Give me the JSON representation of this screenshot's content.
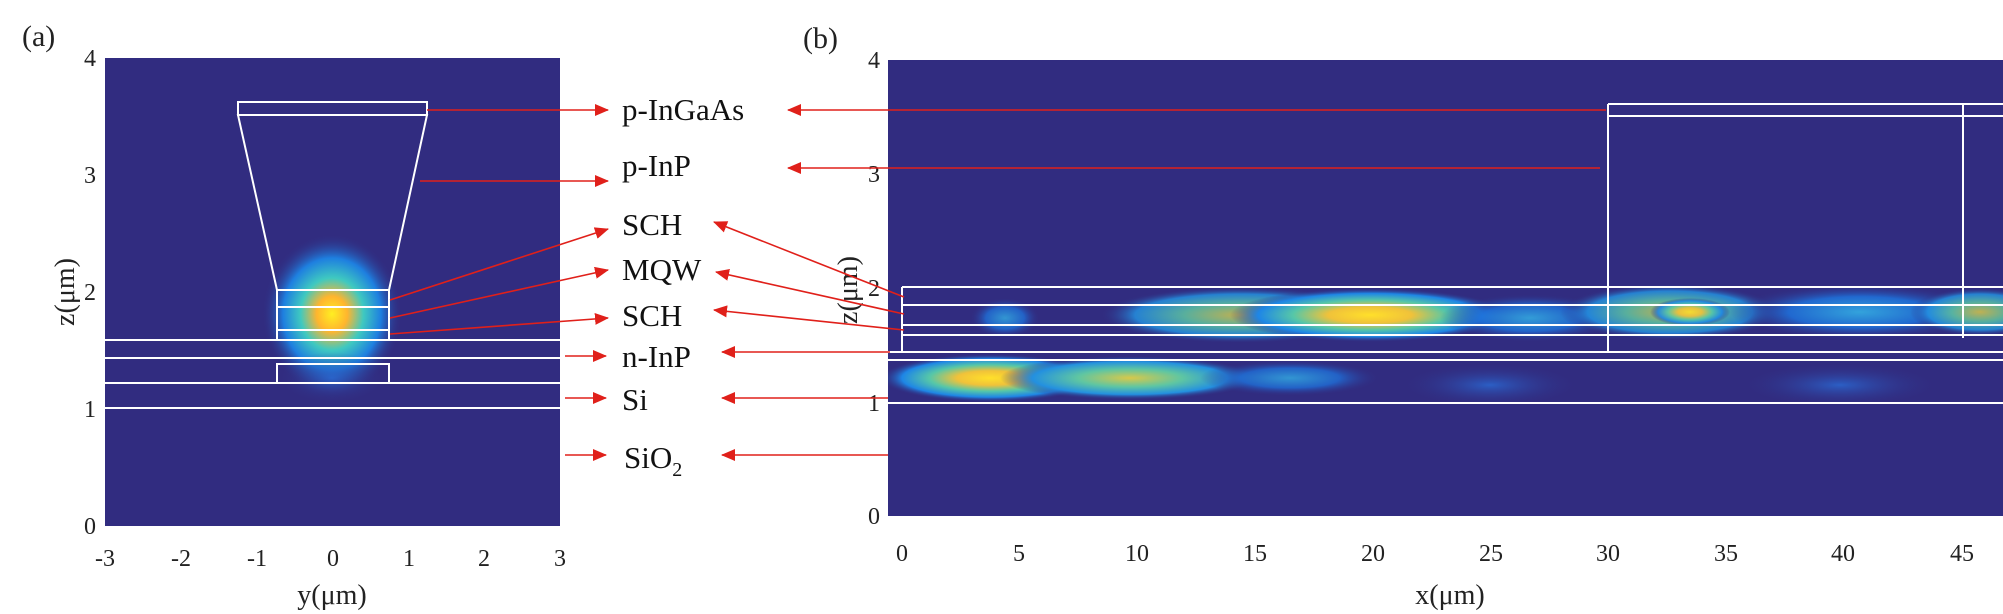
{
  "panels": {
    "a": {
      "label": "(a)",
      "xlabel": "y(μm)",
      "ylabel": "z(μm)",
      "xticks": [
        "-3",
        "-2",
        "-1",
        "0",
        "1",
        "2",
        "3"
      ],
      "yticks": [
        "0",
        "1",
        "2",
        "3",
        "4"
      ],
      "xlim": [
        -3,
        3
      ],
      "ylim": [
        0,
        4
      ]
    },
    "b": {
      "label": "(b)",
      "xlabel": "x(μm)",
      "ylabel": "z(μm)",
      "xticks": [
        "0",
        "5",
        "10",
        "15",
        "20",
        "25",
        "30",
        "35",
        "40",
        "45"
      ],
      "yticks": [
        "0",
        "1",
        "2",
        "3",
        "4"
      ],
      "xlim": [
        0,
        47
      ],
      "ylim": [
        0,
        4
      ]
    }
  },
  "layers": {
    "p_ingaas": "p-InGaAs",
    "p_inp": "p-InP",
    "sch_top": "SCH",
    "mqw": "MQW",
    "sch_bottom": "SCH",
    "n_inp": "n-InP",
    "si": "Si",
    "sio2_base": "SiO",
    "sio2_sub": "2"
  },
  "colors": {
    "background_field": "#312c80",
    "arrow": "#e0201a",
    "outline": "#ffffff",
    "hot": "#ffee22"
  }
}
